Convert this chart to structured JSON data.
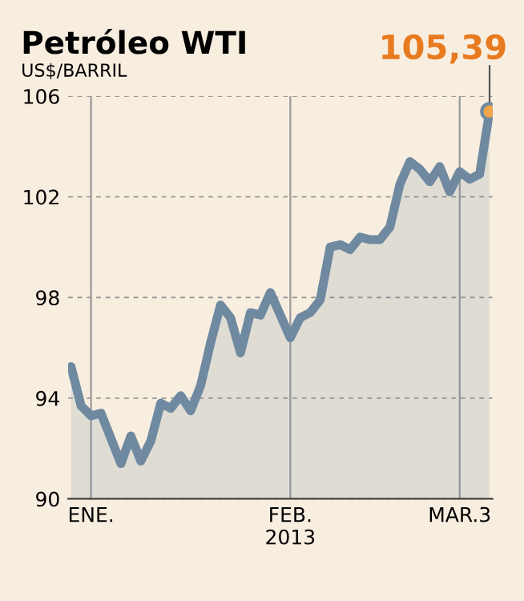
{
  "chart_data": {
    "type": "area",
    "title": "Petróleo WTI",
    "subtitle": "US$/BARRIL",
    "categories": [
      null,
      null,
      "ENE.",
      null,
      null,
      null,
      null,
      null,
      null,
      null,
      null,
      null,
      null,
      null,
      null,
      null,
      null,
      null,
      null,
      null,
      null,
      null,
      "FEB.\n2013",
      null,
      null,
      null,
      null,
      null,
      null,
      null,
      null,
      null,
      null,
      null,
      null,
      null,
      null,
      null,
      null,
      "MAR.3",
      null,
      null,
      null
    ],
    "series": [
      {
        "color": "#6f8aa0",
        "values": [
          95.25,
          93.7,
          93.3,
          93.4,
          92.4,
          91.4,
          92.5,
          91.5,
          92.3,
          93.8,
          93.6,
          94.1,
          93.5,
          94.5,
          96.2,
          97.7,
          97.2,
          95.8,
          97.4,
          97.3,
          98.2,
          97.3,
          96.4,
          97.2,
          97.4,
          97.9,
          100.0,
          100.1,
          99.9,
          100.4,
          100.3,
          100.3,
          100.8,
          102.5,
          103.4,
          103.1,
          102.6,
          103.2,
          102.2,
          103.0,
          102.7,
          102.9,
          105.39
        ],
        "value_labels": [
          null,
          null,
          null,
          null,
          null,
          null,
          null,
          null,
          null,
          null,
          null,
          null,
          null,
          null,
          null,
          null,
          null,
          null,
          null,
          null,
          null,
          null,
          null,
          null,
          null,
          null,
          null,
          null,
          null,
          null,
          null,
          null,
          null,
          null,
          null,
          null,
          null,
          null,
          null,
          null,
          null,
          null,
          "105,39"
        ]
      }
    ],
    "ylim": [
      90,
      106
    ],
    "yticks": [
      90,
      94,
      98,
      102,
      106
    ],
    "grid": true
  }
}
